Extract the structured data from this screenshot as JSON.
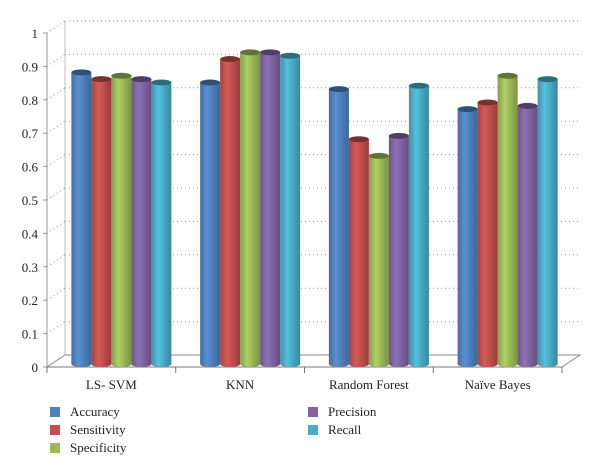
{
  "chart_data": {
    "type": "bar",
    "categories": [
      "LS- SVM",
      "KNN",
      "Random Forest",
      "Naïve Bayes"
    ],
    "series": [
      {
        "name": "Accuracy",
        "color": "#4F81BD",
        "values": [
          0.87,
          0.84,
          0.82,
          0.76
        ]
      },
      {
        "name": "Sensitivity",
        "color": "#C0504D",
        "values": [
          0.85,
          0.91,
          0.67,
          0.78
        ]
      },
      {
        "name": "Specificity",
        "color": "#9BBB59",
        "values": [
          0.86,
          0.93,
          0.62,
          0.86
        ]
      },
      {
        "name": "Precision",
        "color": "#8064A2",
        "values": [
          0.85,
          0.93,
          0.68,
          0.77
        ]
      },
      {
        "name": "Recall",
        "color": "#4BACC6",
        "values": [
          0.84,
          0.92,
          0.83,
          0.85
        ]
      }
    ],
    "yticks": [
      "0",
      "0.1",
      "0.2",
      "0.3",
      "0.4",
      "0.5",
      "0.6",
      "0.7",
      "0.8",
      "0.9",
      "1"
    ],
    "ylim": [
      0,
      1
    ],
    "grid": true,
    "legend_position": "bottom-left",
    "title": "",
    "xlabel": "",
    "ylabel": ""
  }
}
